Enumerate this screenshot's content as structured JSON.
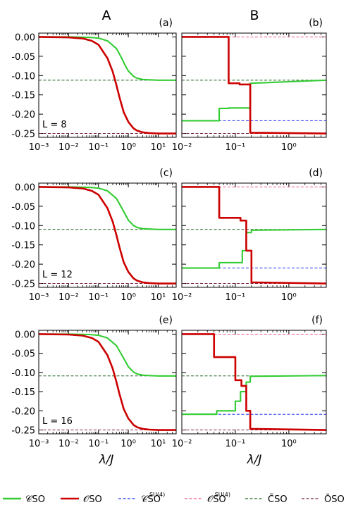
{
  "columns": [
    {
      "letter": "A"
    },
    {
      "letter": "B"
    }
  ],
  "xlabel": "λ/J",
  "legend": [
    {
      "key": "C_SO",
      "text": "𝒞SO",
      "sup": "",
      "color": "#33cc33",
      "style": "solid"
    },
    {
      "key": "O_SO",
      "text": "𝒪SO",
      "sup": "",
      "color": "#cc0000",
      "style": "solid"
    },
    {
      "key": "C_SU4",
      "text": "𝒞SO",
      "sup": "SU(4)",
      "color": "#2233ee",
      "style": "dashed"
    },
    {
      "key": "O_SU4",
      "text": "𝒪SO",
      "sup": "SU(4)",
      "color": "#ee5588",
      "style": "dashed"
    },
    {
      "key": "Ct",
      "text": "C̃SO",
      "sup": "",
      "color": "#226622",
      "style": "dashed"
    },
    {
      "key": "Ot",
      "text": "ŌSO",
      "sup": "",
      "color": "#772244",
      "style": "dashed"
    }
  ],
  "chart_data": [
    {
      "panel": "(a)",
      "type": "line",
      "column": "A",
      "size_label": "L = 8",
      "xscale": "log",
      "xlim": [
        0.001,
        40
      ],
      "ylim": [
        -0.26,
        0.01
      ],
      "xticks": [
        "10⁻³",
        "10⁻²",
        "10⁻¹",
        "10⁰",
        "10¹"
      ],
      "yticks": [
        "0.00",
        "-0.05",
        "-0.10",
        "-0.15",
        "-0.20",
        "-0.25"
      ],
      "series": [
        {
          "key": "C_SO",
          "x": [
            0.001,
            0.01,
            0.05,
            0.1,
            0.2,
            0.4,
            0.6,
            0.8,
            1,
            1.5,
            2,
            3,
            5,
            10,
            40
          ],
          "y": [
            0,
            0,
            -0.001,
            -0.003,
            -0.01,
            -0.03,
            -0.055,
            -0.075,
            -0.088,
            -0.102,
            -0.107,
            -0.11,
            -0.111,
            -0.112,
            -0.112
          ]
        },
        {
          "key": "O_SO",
          "x": [
            0.001,
            0.01,
            0.03,
            0.06,
            0.1,
            0.2,
            0.3,
            0.4,
            0.5,
            0.7,
            1,
            1.5,
            2,
            3,
            5,
            10,
            40
          ],
          "y": [
            0,
            -0.001,
            -0.004,
            -0.01,
            -0.02,
            -0.055,
            -0.09,
            -0.125,
            -0.155,
            -0.195,
            -0.22,
            -0.237,
            -0.243,
            -0.247,
            -0.249,
            -0.25,
            -0.25
          ]
        },
        {
          "key": "Ct",
          "y0": -0.112
        },
        {
          "key": "Ot",
          "y0": -0.25
        }
      ]
    },
    {
      "panel": "(b)",
      "type": "line",
      "column": "B",
      "xscale": "log",
      "xlim": [
        0.01,
        5
      ],
      "ylim": [
        -0.26,
        0.01
      ],
      "xticks": [
        "10⁻²",
        "10⁻¹",
        "10⁰"
      ],
      "series": [
        {
          "key": "C_SO",
          "x": [
            0.01,
            0.05,
            0.05,
            0.075,
            0.075,
            0.19,
            0.19,
            5
          ],
          "y": [
            -0.217,
            -0.217,
            -0.185,
            -0.185,
            -0.184,
            -0.184,
            -0.12,
            -0.112
          ]
        },
        {
          "key": "O_SO",
          "x": [
            0.01,
            0.075,
            0.075,
            0.12,
            0.12,
            0.19,
            0.19,
            5
          ],
          "y": [
            0,
            0,
            -0.12,
            -0.12,
            -0.123,
            -0.123,
            -0.248,
            -0.25
          ]
        },
        {
          "key": "C_SU4",
          "y0": -0.217
        },
        {
          "key": "O_SU4",
          "y0": 0
        },
        {
          "key": "Ct",
          "y0": -0.112
        },
        {
          "key": "Ot",
          "y0": -0.25
        }
      ]
    },
    {
      "panel": "(c)",
      "type": "line",
      "column": "A",
      "size_label": "L = 12",
      "xscale": "log",
      "xlim": [
        0.001,
        40
      ],
      "ylim": [
        -0.26,
        0.01
      ],
      "xticks": [
        "10⁻³",
        "10⁻²",
        "10⁻¹",
        "10⁰",
        "10¹"
      ],
      "yticks": [
        "0.00",
        "-0.05",
        "-0.10",
        "-0.15",
        "-0.20",
        "-0.25"
      ],
      "series": [
        {
          "key": "C_SO",
          "x": [
            0.001,
            0.01,
            0.05,
            0.1,
            0.2,
            0.4,
            0.6,
            0.8,
            1,
            1.5,
            2,
            3,
            5,
            10,
            40
          ],
          "y": [
            0,
            0,
            -0.001,
            -0.003,
            -0.01,
            -0.03,
            -0.054,
            -0.072,
            -0.086,
            -0.1,
            -0.105,
            -0.108,
            -0.109,
            -0.11,
            -0.11
          ]
        },
        {
          "key": "O_SO",
          "x": [
            0.001,
            0.01,
            0.03,
            0.06,
            0.1,
            0.2,
            0.3,
            0.4,
            0.5,
            0.7,
            1,
            1.5,
            2,
            3,
            5,
            10,
            40
          ],
          "y": [
            0,
            -0.001,
            -0.004,
            -0.01,
            -0.02,
            -0.055,
            -0.09,
            -0.125,
            -0.155,
            -0.195,
            -0.22,
            -0.237,
            -0.243,
            -0.247,
            -0.249,
            -0.25,
            -0.25
          ]
        },
        {
          "key": "Ct",
          "y0": -0.11
        },
        {
          "key": "Ot",
          "y0": -0.25
        }
      ]
    },
    {
      "panel": "(d)",
      "type": "line",
      "column": "B",
      "xscale": "log",
      "xlim": [
        0.01,
        5
      ],
      "ylim": [
        -0.26,
        0.01
      ],
      "xticks": [
        "10⁻²",
        "10⁻¹",
        "10⁰"
      ],
      "series": [
        {
          "key": "C_SO",
          "x": [
            0.01,
            0.05,
            0.05,
            0.135,
            0.135,
            0.16,
            0.16,
            0.2,
            0.2,
            5
          ],
          "y": [
            -0.21,
            -0.21,
            -0.196,
            -0.196,
            -0.165,
            -0.165,
            -0.118,
            -0.118,
            -0.112,
            -0.11
          ]
        },
        {
          "key": "O_SO",
          "x": [
            0.01,
            0.05,
            0.05,
            0.125,
            0.125,
            0.16,
            0.16,
            0.2,
            0.2,
            5
          ],
          "y": [
            0,
            0,
            -0.08,
            -0.08,
            -0.087,
            -0.087,
            -0.165,
            -0.165,
            -0.247,
            -0.25
          ]
        },
        {
          "key": "C_SU4",
          "y0": -0.21
        },
        {
          "key": "O_SU4",
          "y0": 0
        },
        {
          "key": "Ct",
          "y0": -0.11
        },
        {
          "key": "Ot",
          "y0": -0.25
        }
      ]
    },
    {
      "panel": "(e)",
      "type": "line",
      "column": "A",
      "size_label": "L = 16",
      "xscale": "log",
      "xlim": [
        0.001,
        40
      ],
      "ylim": [
        -0.26,
        0.01
      ],
      "xticks": [
        "10⁻³",
        "10⁻²",
        "10⁻¹",
        "10⁰",
        "10¹"
      ],
      "yticks": [
        "0.00",
        "-0.05",
        "-0.10",
        "-0.15",
        "-0.20",
        "-0.25"
      ],
      "series": [
        {
          "key": "C_SO",
          "x": [
            0.001,
            0.01,
            0.05,
            0.1,
            0.2,
            0.4,
            0.6,
            0.8,
            1,
            1.5,
            2,
            3,
            5,
            10,
            40
          ],
          "y": [
            0,
            0,
            -0.001,
            -0.003,
            -0.01,
            -0.03,
            -0.054,
            -0.071,
            -0.085,
            -0.099,
            -0.104,
            -0.107,
            -0.108,
            -0.109,
            -0.109
          ]
        },
        {
          "key": "O_SO",
          "x": [
            0.001,
            0.01,
            0.03,
            0.06,
            0.1,
            0.2,
            0.3,
            0.4,
            0.5,
            0.7,
            1,
            1.5,
            2,
            3,
            5,
            10,
            40
          ],
          "y": [
            0,
            -0.001,
            -0.004,
            -0.01,
            -0.02,
            -0.055,
            -0.09,
            -0.125,
            -0.155,
            -0.195,
            -0.22,
            -0.237,
            -0.243,
            -0.247,
            -0.249,
            -0.25,
            -0.25
          ]
        },
        {
          "key": "Ct",
          "y0": -0.109
        },
        {
          "key": "Ot",
          "y0": -0.25
        }
      ]
    },
    {
      "panel": "(f)",
      "type": "line",
      "column": "B",
      "xscale": "log",
      "xlim": [
        0.01,
        5
      ],
      "ylim": [
        -0.26,
        0.01
      ],
      "xticks": [
        "10⁻²",
        "10⁻¹",
        "10⁰"
      ],
      "series": [
        {
          "key": "C_SO",
          "x": [
            0.01,
            0.045,
            0.045,
            0.1,
            0.1,
            0.125,
            0.125,
            0.16,
            0.16,
            0.19,
            0.19,
            5
          ],
          "y": [
            -0.209,
            -0.209,
            -0.2,
            -0.2,
            -0.175,
            -0.175,
            -0.15,
            -0.15,
            -0.125,
            -0.125,
            -0.11,
            -0.108
          ]
        },
        {
          "key": "O_SO",
          "x": [
            0.01,
            0.04,
            0.04,
            0.1,
            0.1,
            0.13,
            0.13,
            0.16,
            0.16,
            0.19,
            0.19,
            5
          ],
          "y": [
            0,
            0,
            -0.06,
            -0.06,
            -0.12,
            -0.12,
            -0.135,
            -0.135,
            -0.2,
            -0.2,
            -0.247,
            -0.25
          ]
        },
        {
          "key": "C_SU4",
          "y0": -0.209
        },
        {
          "key": "O_SU4",
          "y0": 0
        },
        {
          "key": "Ct",
          "y0": -0.109
        },
        {
          "key": "Ot",
          "y0": -0.25
        }
      ]
    }
  ]
}
